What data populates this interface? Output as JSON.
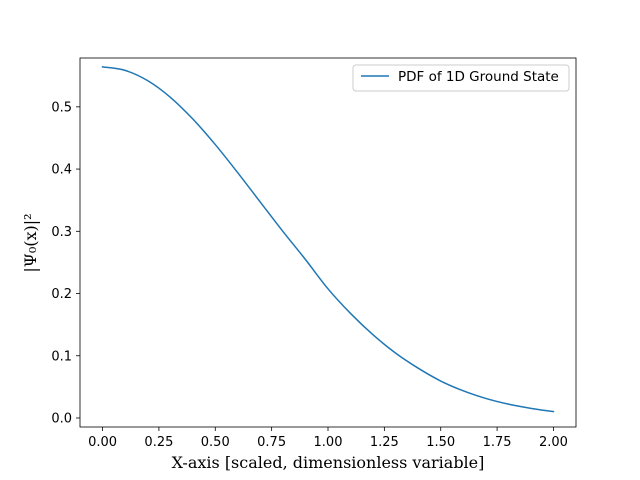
{
  "chart_data": {
    "type": "line",
    "title": "",
    "xlabel": "X-axis [scaled, dimensionless variable]",
    "ylabel": "|Ψ₀(x)|²",
    "xlim": [
      -0.1,
      2.1
    ],
    "ylim": [
      -0.0145,
      0.5785
    ],
    "xticks": [
      0.0,
      0.25,
      0.5,
      0.75,
      1.0,
      1.25,
      1.5,
      1.75,
      2.0
    ],
    "xtick_labels": [
      "0.00",
      "0.25",
      "0.50",
      "0.75",
      "1.00",
      "1.25",
      "1.50",
      "1.75",
      "2.00"
    ],
    "yticks": [
      0.0,
      0.1,
      0.2,
      0.3,
      0.4,
      0.5
    ],
    "ytick_labels": [
      "0.0",
      "0.1",
      "0.2",
      "0.3",
      "0.4",
      "0.5"
    ],
    "grid": false,
    "legend_position": "top-right",
    "series": [
      {
        "name": "PDF of 1D Ground State",
        "color": "#1f77b4",
        "x": [
          0.0,
          0.1,
          0.2,
          0.3,
          0.4,
          0.5,
          0.6,
          0.7,
          0.8,
          0.9,
          1.0,
          1.1,
          1.2,
          1.3,
          1.4,
          1.5,
          1.6,
          1.7,
          1.8,
          1.9,
          2.0
        ],
        "y": [
          0.5642,
          0.5586,
          0.5421,
          0.5156,
          0.4806,
          0.4394,
          0.394,
          0.3468,
          0.2998,
          0.2547,
          0.2076,
          0.168,
          0.1336,
          0.1042,
          0.08,
          0.0594,
          0.0436,
          0.0314,
          0.0222,
          0.0155,
          0.0103
        ]
      }
    ]
  }
}
